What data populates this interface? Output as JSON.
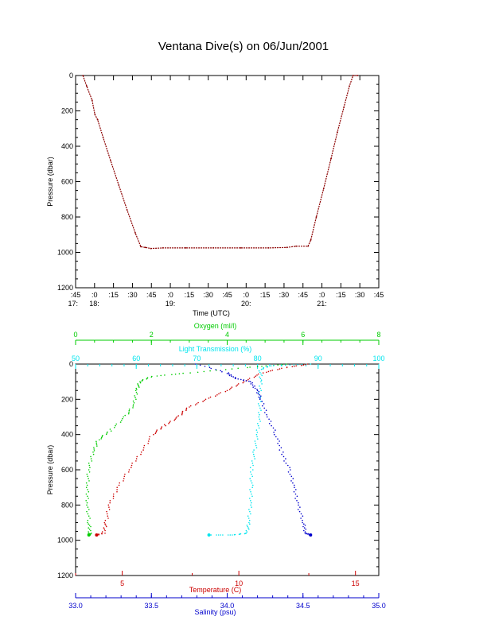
{
  "title": "Ventana Dive(s) on 06/Jun/2001",
  "chart_data": [
    {
      "type": "line",
      "name": "pressure-vs-time",
      "xlabel": "Time (UTC)",
      "ylabel": "Pressure (dbar)",
      "ylim": [
        1200,
        0
      ],
      "y_ticks": [
        "0",
        "200",
        "400",
        "600",
        "800",
        "1000",
        "1200"
      ],
      "x_tick_labels": [
        ":45",
        ":0",
        ":15",
        ":30",
        ":45",
        ":0",
        ":15",
        ":30",
        ":45",
        ":0",
        ":15",
        ":30",
        ":45",
        ":0",
        ":15",
        ":30",
        ":45"
      ],
      "hour_labels": [
        {
          "label": "17:",
          "tick": 0
        },
        {
          "label": "18:",
          "tick": 1
        },
        {
          "label": "19:",
          "tick": 5
        },
        {
          "label": "20:",
          "tick": 9
        },
        {
          "label": "21:",
          "tick": 13
        }
      ],
      "x_unit": "minutes since 17:45 UTC",
      "series_color": "#8b0000",
      "points": [
        [
          8,
          0
        ],
        [
          12,
          60
        ],
        [
          18,
          140
        ],
        [
          21,
          220
        ],
        [
          24,
          250
        ],
        [
          30,
          350
        ],
        [
          38,
          480
        ],
        [
          47,
          620
        ],
        [
          56,
          760
        ],
        [
          65,
          890
        ],
        [
          71,
          968
        ],
        [
          76,
          972
        ],
        [
          82,
          978
        ],
        [
          95,
          975
        ],
        [
          120,
          975
        ],
        [
          150,
          975
        ],
        [
          180,
          975
        ],
        [
          210,
          975
        ],
        [
          230,
          972
        ],
        [
          240,
          965
        ],
        [
          253,
          965
        ],
        [
          256,
          930
        ],
        [
          262,
          800
        ],
        [
          270,
          640
        ],
        [
          278,
          470
        ],
        [
          285,
          320
        ],
        [
          292,
          180
        ],
        [
          298,
          60
        ],
        [
          302,
          0
        ],
        [
          307,
          0
        ]
      ],
      "xlim": [
        0,
        330
      ],
      "grid": false
    },
    {
      "type": "scatter",
      "name": "profiles",
      "ylabel": "Pressure (dbar)",
      "ylim": [
        1200,
        0
      ],
      "y_ticks": [
        "0",
        "200",
        "400",
        "600",
        "800",
        "1000",
        "1200"
      ],
      "axes": [
        {
          "label": "Oxygen (ml/l)",
          "color": "#00cc00",
          "position": "top",
          "range": [
            0,
            8
          ],
          "ticks": [
            "0",
            "2",
            "4",
            "6",
            "8"
          ],
          "tick_values": [
            0,
            2,
            4,
            6,
            8
          ],
          "minor": 4
        },
        {
          "label": "Light Transmission (%)",
          "color": "#00e5ee",
          "position": "top-inner",
          "range": [
            50,
            100
          ],
          "ticks": [
            "50",
            "60",
            "70",
            "80",
            "90",
            "100"
          ],
          "tick_values": [
            50,
            60,
            70,
            80,
            90,
            100
          ],
          "minor": 5
        },
        {
          "label": "Temperature (C)",
          "color": "#cc0000",
          "position": "bottom",
          "range": [
            3.0,
            16.0
          ],
          "ticks": [
            "5",
            "10",
            "15"
          ],
          "tick_values": [
            5,
            10,
            15
          ],
          "minor": 1
        },
        {
          "label": "Salinity (psu)",
          "color": "#0000cc",
          "position": "bottom-outer",
          "range": [
            33.0,
            35.0
          ],
          "ticks": [
            "33.0",
            "33.5",
            "34.0",
            "34.5",
            "35.0"
          ],
          "tick_values": [
            33.0,
            33.5,
            34.0,
            34.5,
            35.0
          ],
          "minor": 5
        }
      ],
      "series": [
        {
          "axis": 0,
          "color": "#00cc00",
          "points": [
            [
              5.6,
              0
            ],
            [
              4.5,
              20
            ],
            [
              3.0,
              50
            ],
            [
              2.0,
              70
            ],
            [
              1.7,
              100
            ],
            [
              1.6,
              150
            ],
            [
              1.55,
              230
            ],
            [
              1.3,
              300
            ],
            [
              0.9,
              380
            ],
            [
              0.6,
              430
            ],
            [
              0.45,
              500
            ],
            [
              0.35,
              600
            ],
            [
              0.3,
              700
            ],
            [
              0.32,
              800
            ],
            [
              0.35,
              900
            ],
            [
              0.38,
              960
            ],
            [
              0.35,
              970
            ]
          ]
        },
        {
          "axis": 1,
          "color": "#00e5ee",
          "points": [
            [
              89,
              0
            ],
            [
              82,
              10
            ],
            [
              80.5,
              30
            ],
            [
              80.5,
              100
            ],
            [
              80.4,
              200
            ],
            [
              80.3,
              300
            ],
            [
              80.0,
              400
            ],
            [
              79.5,
              500
            ],
            [
              79.0,
              600
            ],
            [
              79.0,
              700
            ],
            [
              78.8,
              800
            ],
            [
              78.6,
              900
            ],
            [
              78.2,
              960
            ],
            [
              76,
              970
            ],
            [
              72,
              970
            ]
          ]
        },
        {
          "axis": 2,
          "color": "#cc0000",
          "points": [
            [
              13.0,
              0
            ],
            [
              12.0,
              20
            ],
            [
              11.0,
              50
            ],
            [
              10.2,
              100
            ],
            [
              9.5,
              150
            ],
            [
              8.6,
              200
            ],
            [
              7.8,
              250
            ],
            [
              7.4,
              300
            ],
            [
              6.8,
              350
            ],
            [
              6.3,
              400
            ],
            [
              5.8,
              500
            ],
            [
              5.3,
              600
            ],
            [
              4.8,
              700
            ],
            [
              4.45,
              800
            ],
            [
              4.3,
              900
            ],
            [
              4.2,
              960
            ],
            [
              3.9,
              970
            ]
          ]
        },
        {
          "axis": 3,
          "color": "#0000cc",
          "points": [
            [
              33.8,
              0
            ],
            [
              34.0,
              50
            ],
            [
              34.05,
              80
            ],
            [
              34.15,
              100
            ],
            [
              34.2,
              150
            ],
            [
              34.22,
              200
            ],
            [
              34.27,
              300
            ],
            [
              34.32,
              400
            ],
            [
              34.36,
              500
            ],
            [
              34.41,
              600
            ],
            [
              34.44,
              700
            ],
            [
              34.47,
              800
            ],
            [
              34.5,
              900
            ],
            [
              34.52,
              960
            ],
            [
              34.55,
              970
            ]
          ]
        }
      ],
      "grid": false
    }
  ]
}
